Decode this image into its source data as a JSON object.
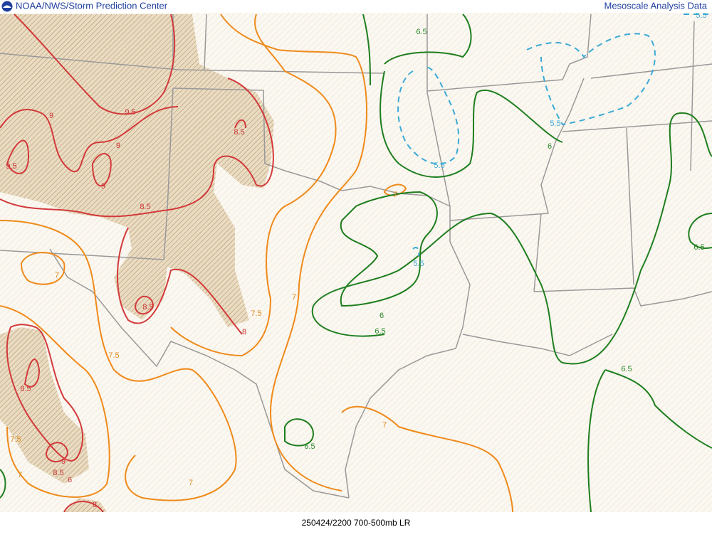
{
  "header": {
    "left": "NOAA/NWS/Storm Prediction Center",
    "right": "Mesoscale Analysis Data"
  },
  "footer": "250424/2200 700-500mb LR",
  "contour_labels": [
    "6.5",
    "5.5",
    "9.5",
    "9",
    "8.5",
    "9",
    "9.5",
    "9",
    "8.5",
    "5.5",
    "6",
    "5.5",
    "7",
    "6.5",
    "5.5",
    "7",
    "7",
    "8.5",
    "7.5",
    "6",
    "8",
    "6.5",
    "7.5",
    "6.5",
    "8.5",
    "7",
    "7.5",
    "6.5",
    "9",
    "8.5",
    "7",
    "6",
    "7",
    "8"
  ]
}
